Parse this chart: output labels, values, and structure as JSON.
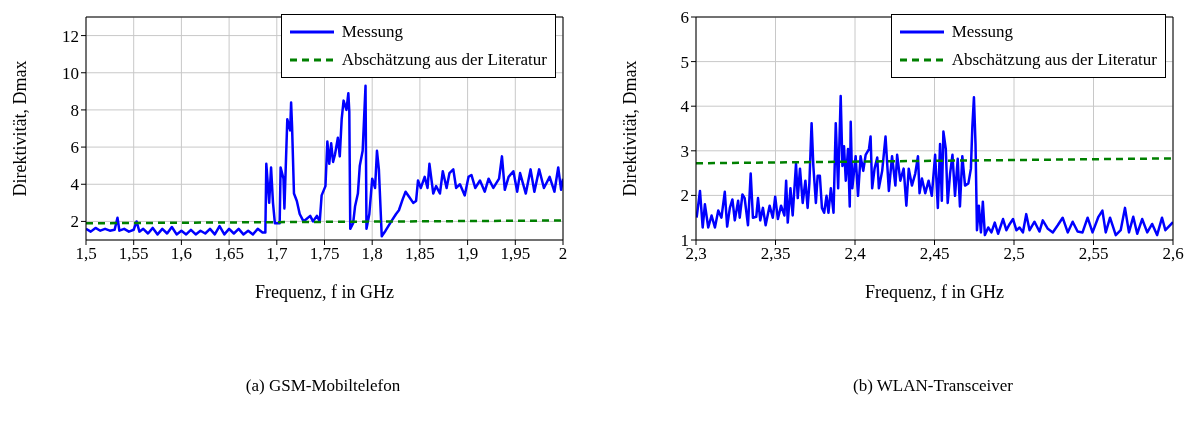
{
  "chart_data": [
    {
      "type": "line",
      "title": "(a) GSM-Mobiltelefon",
      "xlabel": "Frequenz, f in GHz",
      "ylabel": "Direktivität, Dmax",
      "xlim": [
        1.5,
        2
      ],
      "ylim": [
        1,
        13
      ],
      "xticks": [
        {
          "value": 1.5,
          "label": "1,5"
        },
        {
          "value": 1.55,
          "label": "1,55"
        },
        {
          "value": 1.6,
          "label": "1,6"
        },
        {
          "value": 1.65,
          "label": "1,65"
        },
        {
          "value": 1.7,
          "label": "1,7"
        },
        {
          "value": 1.75,
          "label": "1,75"
        },
        {
          "value": 1.8,
          "label": "1,8"
        },
        {
          "value": 1.85,
          "label": "1,85"
        },
        {
          "value": 1.9,
          "label": "1,9"
        },
        {
          "value": 1.95,
          "label": "1,95"
        },
        {
          "value": 2,
          "label": "2"
        }
      ],
      "yticks": [
        2,
        4,
        6,
        8,
        10,
        12
      ],
      "grid": true,
      "legend": "top right",
      "series": [
        {
          "name": "Messung",
          "color": "#0000ff",
          "line_style": "solid",
          "x": [
            1.5,
            1.505,
            1.51,
            1.515,
            1.52,
            1.525,
            1.53,
            1.533,
            1.535,
            1.54,
            1.545,
            1.55,
            1.553,
            1.556,
            1.56,
            1.565,
            1.57,
            1.575,
            1.58,
            1.585,
            1.59,
            1.595,
            1.6,
            1.605,
            1.61,
            1.615,
            1.62,
            1.625,
            1.63,
            1.635,
            1.64,
            1.645,
            1.65,
            1.655,
            1.66,
            1.665,
            1.67,
            1.675,
            1.68,
            1.685,
            1.688,
            1.689,
            1.692,
            1.694,
            1.696,
            1.698,
            1.703,
            1.704,
            1.707,
            1.708,
            1.711,
            1.714,
            1.715,
            1.716,
            1.718,
            1.721,
            1.724,
            1.728,
            1.735,
            1.738,
            1.742,
            1.745,
            1.747,
            1.751,
            1.753,
            1.755,
            1.757,
            1.759,
            1.761,
            1.764,
            1.766,
            1.768,
            1.77,
            1.773,
            1.775,
            1.776,
            1.777,
            1.78,
            1.782,
            1.785,
            1.787,
            1.79,
            1.793,
            1.794,
            1.797,
            1.8,
            1.803,
            1.805,
            1.807,
            1.81,
            1.814,
            1.82,
            1.825,
            1.828,
            1.832,
            1.835,
            1.839,
            1.843,
            1.846,
            1.848,
            1.851,
            1.855,
            1.858,
            1.86,
            1.864,
            1.867,
            1.871,
            1.874,
            1.878,
            1.881,
            1.885,
            1.888,
            1.892,
            1.897,
            1.901,
            1.904,
            1.908,
            1.913,
            1.918,
            1.922,
            1.927,
            1.933,
            1.936,
            1.939,
            1.943,
            1.948,
            1.952,
            1.955,
            1.961,
            1.966,
            1.97,
            1.975,
            1.98,
            1.986,
            1.991,
            1.995,
            1.998,
            2.0
          ],
          "values": [
            1.6,
            1.45,
            1.65,
            1.5,
            1.6,
            1.5,
            1.55,
            2.2,
            1.5,
            1.6,
            1.45,
            1.55,
            2.0,
            1.45,
            1.6,
            1.35,
            1.65,
            1.3,
            1.6,
            1.35,
            1.7,
            1.3,
            1.5,
            1.3,
            1.55,
            1.3,
            1.5,
            1.35,
            1.6,
            1.3,
            1.75,
            1.3,
            1.6,
            1.35,
            1.6,
            1.3,
            1.5,
            1.3,
            1.6,
            1.4,
            1.4,
            5.1,
            3.0,
            4.9,
            3.0,
            1.9,
            1.9,
            4.9,
            4.3,
            2.7,
            7.5,
            6.9,
            8.4,
            7.1,
            3.5,
            3.1,
            2.4,
            2.0,
            2.3,
            2.0,
            2.3,
            2.0,
            3.4,
            3.9,
            6.3,
            5.1,
            6.2,
            5.2,
            5.6,
            6.5,
            5.5,
            7.5,
            8.5,
            8.0,
            8.9,
            7.9,
            1.6,
            1.9,
            2.8,
            3.5,
            5.0,
            5.8,
            9.3,
            1.6,
            2.4,
            4.3,
            3.8,
            5.8,
            4.8,
            1.2,
            1.5,
            2.0,
            2.4,
            2.6,
            3.2,
            3.6,
            3.3,
            3.0,
            3.1,
            4.2,
            3.8,
            4.4,
            3.8,
            5.1,
            3.5,
            3.9,
            3.5,
            4.7,
            3.8,
            4.6,
            4.8,
            3.8,
            4.0,
            3.4,
            4.4,
            4.5,
            3.8,
            4.2,
            3.6,
            4.3,
            3.8,
            4.3,
            5.5,
            3.7,
            4.4,
            4.7,
            3.6,
            4.6,
            3.5,
            4.8,
            3.6,
            4.8,
            3.8,
            4.4,
            3.6,
            4.9,
            3.7,
            4.3
          ]
        },
        {
          "name": "Abschätzung aus der Literatur",
          "color": "#008000",
          "line_style": "dashed",
          "x": [
            1.5,
            2.0
          ],
          "values": [
            1.9,
            2.05
          ]
        }
      ]
    },
    {
      "type": "line",
      "title": "(b) WLAN-Transceiver",
      "xlabel": "Frequenz, f in GHz",
      "ylabel": "Direktivität, Dmax",
      "xlim": [
        2.3,
        2.6
      ],
      "ylim": [
        1,
        6
      ],
      "xticks": [
        {
          "value": 2.3,
          "label": "2,3"
        },
        {
          "value": 2.35,
          "label": "2,35"
        },
        {
          "value": 2.4,
          "label": "2,4"
        },
        {
          "value": 2.45,
          "label": "2,45"
        },
        {
          "value": 2.5,
          "label": "2,5"
        },
        {
          "value": 2.55,
          "label": "2,55"
        },
        {
          "value": 2.6,
          "label": "2,6"
        }
      ],
      "yticks": [
        1,
        2,
        3,
        4,
        5,
        6
      ],
      "grid": true,
      "legend": "top right",
      "series": [
        {
          "name": "Messung",
          "color": "#0000ff",
          "line_style": "solid",
          "x": [
            2.3004,
            2.3025,
            2.3042,
            2.3056,
            2.3077,
            2.3098,
            2.3119,
            2.314,
            2.316,
            2.3181,
            2.3196,
            2.3213,
            2.3229,
            2.3244,
            2.3265,
            2.3275,
            2.3292,
            2.3306,
            2.3327,
            2.3344,
            2.3358,
            2.3379,
            2.339,
            2.3404,
            2.3421,
            2.3438,
            2.3463,
            2.3483,
            2.3498,
            2.3515,
            2.3535,
            2.3556,
            2.3567,
            2.3577,
            2.3594,
            2.3608,
            2.3629,
            2.364,
            2.3654,
            2.3671,
            2.3688,
            2.3702,
            2.3713,
            2.3727,
            2.3738,
            2.3754,
            2.3765,
            2.3779,
            2.3792,
            2.3806,
            2.3821,
            2.3833,
            2.3848,
            2.3865,
            2.3879,
            2.3894,
            2.391,
            2.3921,
            2.3931,
            2.3942,
            2.3956,
            2.3967,
            2.3973,
            2.3983,
            2.4004,
            2.4019,
            2.4035,
            2.4052,
            2.4067,
            2.4088,
            2.4098,
            2.4108,
            2.4123,
            2.414,
            2.415,
            2.4171,
            2.4192,
            2.4213,
            2.4233,
            2.4254,
            2.4265,
            2.4285,
            2.4306,
            2.4323,
            2.4338,
            2.4358,
            2.4379,
            2.4396,
            2.4406,
            2.4421,
            2.4442,
            2.4463,
            2.4483,
            2.4504,
            2.4521,
            2.4535,
            2.4546,
            2.4556,
            2.4571,
            2.4583,
            2.4598,
            2.4613,
            2.4629,
            2.4646,
            2.466,
            2.4675,
            2.4692,
            2.4713,
            2.4729,
            2.4738,
            2.4748,
            2.4758,
            2.4767,
            2.4779,
            2.4792,
            2.4804,
            2.4817,
            2.4838,
            2.4858,
            2.4879,
            2.49,
            2.4931,
            2.4952,
            2.4973,
            2.4994,
            2.5015,
            2.5035,
            2.5056,
            2.5077,
            2.5098,
            2.5129,
            2.516,
            2.5181,
            2.5213,
            2.5244,
            2.5275,
            2.5306,
            2.5338,
            2.5369,
            2.54,
            2.5431,
            2.5463,
            2.5494,
            2.5531,
            2.5556,
            2.5577,
            2.5604,
            2.564,
            2.5671,
            2.5698,
            2.5723,
            2.575,
            2.5775,
            2.5806,
            2.5838,
            2.5869,
            2.59,
            2.5931,
            2.5952,
            2.6
          ],
          "values": [
            1.5,
            2.1,
            1.28,
            1.8,
            1.28,
            1.55,
            1.28,
            1.66,
            1.5,
            2.08,
            1.3,
            1.72,
            1.91,
            1.44,
            1.88,
            1.5,
            2.02,
            1.94,
            1.33,
            2.49,
            1.5,
            1.52,
            1.94,
            1.44,
            1.72,
            1.33,
            1.77,
            1.5,
            1.97,
            1.47,
            1.77,
            1.55,
            2.33,
            1.39,
            2.16,
            1.55,
            2.71,
            1.94,
            2.6,
            1.83,
            2.33,
            1.72,
            2.27,
            3.62,
            2.66,
            1.83,
            2.44,
            2.44,
            1.72,
            1.61,
            1.99,
            1.61,
            2.16,
            1.61,
            3.62,
            2.16,
            4.23,
            2.66,
            3.1,
            2.33,
            3.04,
            1.75,
            3.65,
            2.16,
            2.88,
            1.99,
            2.88,
            2.55,
            2.91,
            3.04,
            3.32,
            2.16,
            2.6,
            2.85,
            2.16,
            2.55,
            3.32,
            2.1,
            2.88,
            2.22,
            2.91,
            2.33,
            2.6,
            1.77,
            2.6,
            2.22,
            2.49,
            2.88,
            2.05,
            2.38,
            2.05,
            2.33,
            1.99,
            2.91,
            1.72,
            3.15,
            1.88,
            3.43,
            3.04,
            1.83,
            2.49,
            2.91,
            1.99,
            2.82,
            1.75,
            2.88,
            2.22,
            2.27,
            2.6,
            3.54,
            4.2,
            3.15,
            1.22,
            1.77,
            1.17,
            1.86,
            1.11,
            1.28,
            1.17,
            1.39,
            1.14,
            1.47,
            1.22,
            1.36,
            1.47,
            1.22,
            1.28,
            1.17,
            1.58,
            1.22,
            1.41,
            1.19,
            1.44,
            1.25,
            1.17,
            1.33,
            1.5,
            1.17,
            1.41,
            1.19,
            1.17,
            1.5,
            1.17,
            1.52,
            1.66,
            1.17,
            1.5,
            1.11,
            1.22,
            1.72,
            1.17,
            1.52,
            1.14,
            1.47,
            1.17,
            1.36,
            1.11,
            1.5,
            1.22,
            1.4
          ]
        },
        {
          "name": "Abschätzung aus der Literatur",
          "color": "#008000",
          "line_style": "dashed",
          "x": [
            2.3,
            2.6
          ],
          "values": [
            2.72,
            2.83
          ]
        }
      ]
    }
  ]
}
